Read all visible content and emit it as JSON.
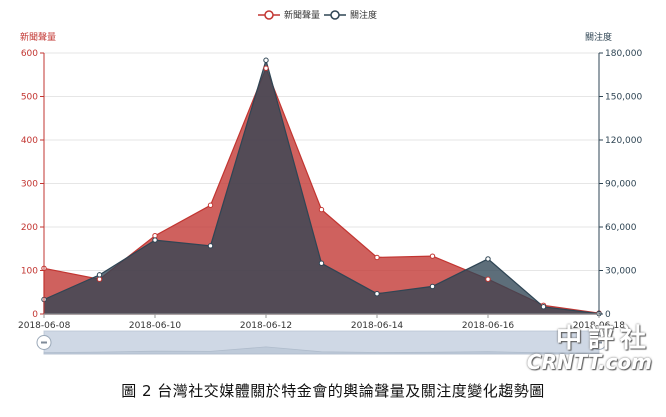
{
  "chart_data": {
    "type": "area",
    "x": [
      "2018-06-08",
      "2018-06-09",
      "2018-06-10",
      "2018-06-11",
      "2018-06-12",
      "2018-06-13",
      "2018-06-14",
      "2018-06-15",
      "2018-06-16",
      "2018-06-17",
      "2018-06-18"
    ],
    "xticks": [
      "2018-06-08",
      "2018-06-10",
      "2018-06-12",
      "2018-06-14",
      "2018-06-16",
      "2018-06-18"
    ],
    "series": [
      {
        "name": "新聞聲量",
        "axis": "left",
        "color": "#c23531",
        "values": [
          105,
          80,
          180,
          250,
          565,
          240,
          130,
          133,
          80,
          20,
          2
        ]
      },
      {
        "name": "關注度",
        "axis": "right",
        "color": "#2f4554",
        "values": [
          10000,
          27000,
          51000,
          47000,
          175000,
          35000,
          14000,
          19000,
          38000,
          5000,
          300
        ]
      }
    ],
    "y_left": {
      "label": "新聞聲量",
      "min": 0,
      "max": 600,
      "ticks": [
        "0",
        "100",
        "200",
        "300",
        "400",
        "500",
        "600"
      ]
    },
    "y_right": {
      "label": "關注度",
      "min": 0,
      "max": 180000,
      "ticks": [
        "0",
        "30,000",
        "60,000",
        "90,000",
        "120,000",
        "150,000",
        "180,000"
      ]
    },
    "legend_position": "top-center",
    "grid": true,
    "zoom_slider": true
  },
  "caption": "圖 2  台灣社交媒體關於特金會的輿論聲量及關注度變化趨勢圖",
  "watermark": {
    "cn": "中評社",
    "en": "CRNTT.com"
  },
  "colors": {
    "left_axis": "#c23531",
    "right_axis": "#2f4554",
    "grid": "#e6e6e6",
    "slider_fill": "#dfe5ee"
  }
}
